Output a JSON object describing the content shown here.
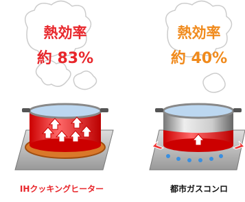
{
  "panels": [
    {
      "heading": "熱効率",
      "value": "約 83%",
      "label": "IHクッキングヒーター"
    },
    {
      "heading": "熱効率",
      "value": "約 40%",
      "label": "都市ガスコンロ"
    }
  ]
}
